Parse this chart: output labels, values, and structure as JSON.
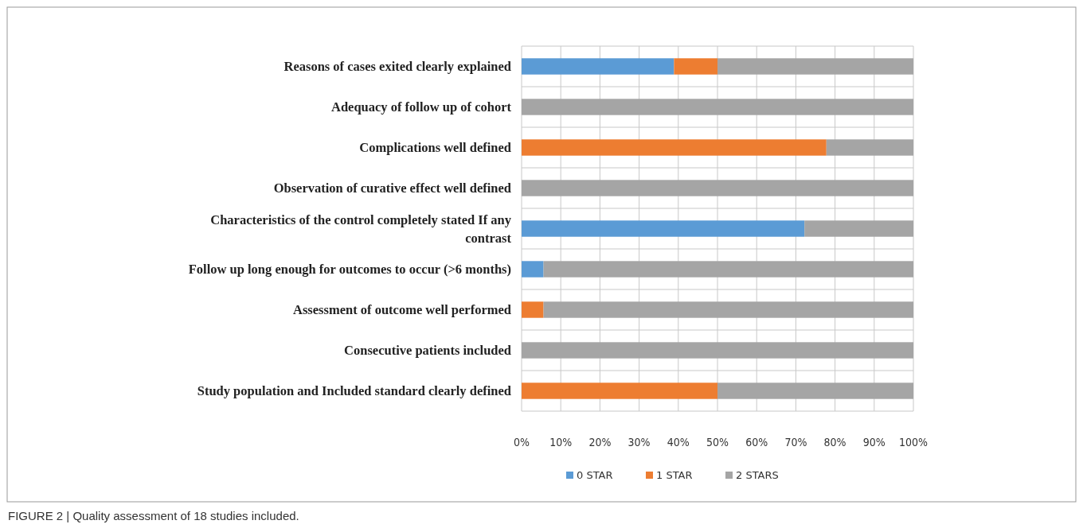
{
  "chart_data": {
    "type": "bar",
    "orientation": "horizontal",
    "stacked": true,
    "categories": [
      "Reasons of cases exited clearly explained",
      "Adequacy of follow up of cohort",
      "Complications well defined",
      "Observation of curative effect well defined",
      "Characteristics of the control completely stated If any contrast",
      "Follow up long enough for outcomes to occur (>6 months)",
      "Assessment of outcome well performed",
      "Consecutive patients included",
      "Study population and Included standard clearly defined"
    ],
    "series": [
      {
        "name": "0 STAR",
        "color": "#5b9bd5",
        "values": [
          38.9,
          0,
          0,
          0,
          72.2,
          5.6,
          0,
          0,
          0
        ]
      },
      {
        "name": "1 STAR",
        "color": "#ed7d31",
        "values": [
          11.1,
          0,
          77.8,
          0,
          0,
          0,
          5.6,
          0,
          50
        ]
      },
      {
        "name": "2 STARS",
        "color": "#a5a5a5",
        "values": [
          50,
          100,
          22.2,
          100,
          27.8,
          94.4,
          94.4,
          100,
          50
        ]
      }
    ],
    "xlim": [
      0,
      100
    ],
    "xticks": [
      {
        "value": 0,
        "label": "0%"
      },
      {
        "value": 10,
        "label": "10%"
      },
      {
        "value": 20,
        "label": "20%"
      },
      {
        "value": 30,
        "label": "30%"
      },
      {
        "value": 40,
        "label": "40%"
      },
      {
        "value": 50,
        "label": "50%"
      },
      {
        "value": 60,
        "label": "60%"
      },
      {
        "value": 70,
        "label": "70%"
      },
      {
        "value": 80,
        "label": "80%"
      },
      {
        "value": 90,
        "label": "90%"
      },
      {
        "value": 100,
        "label": "100%"
      }
    ],
    "grid": true,
    "legend": "bottom",
    "annotations": [
      "FIGURE 2 | Quality assessment of 18 studies included."
    ]
  }
}
